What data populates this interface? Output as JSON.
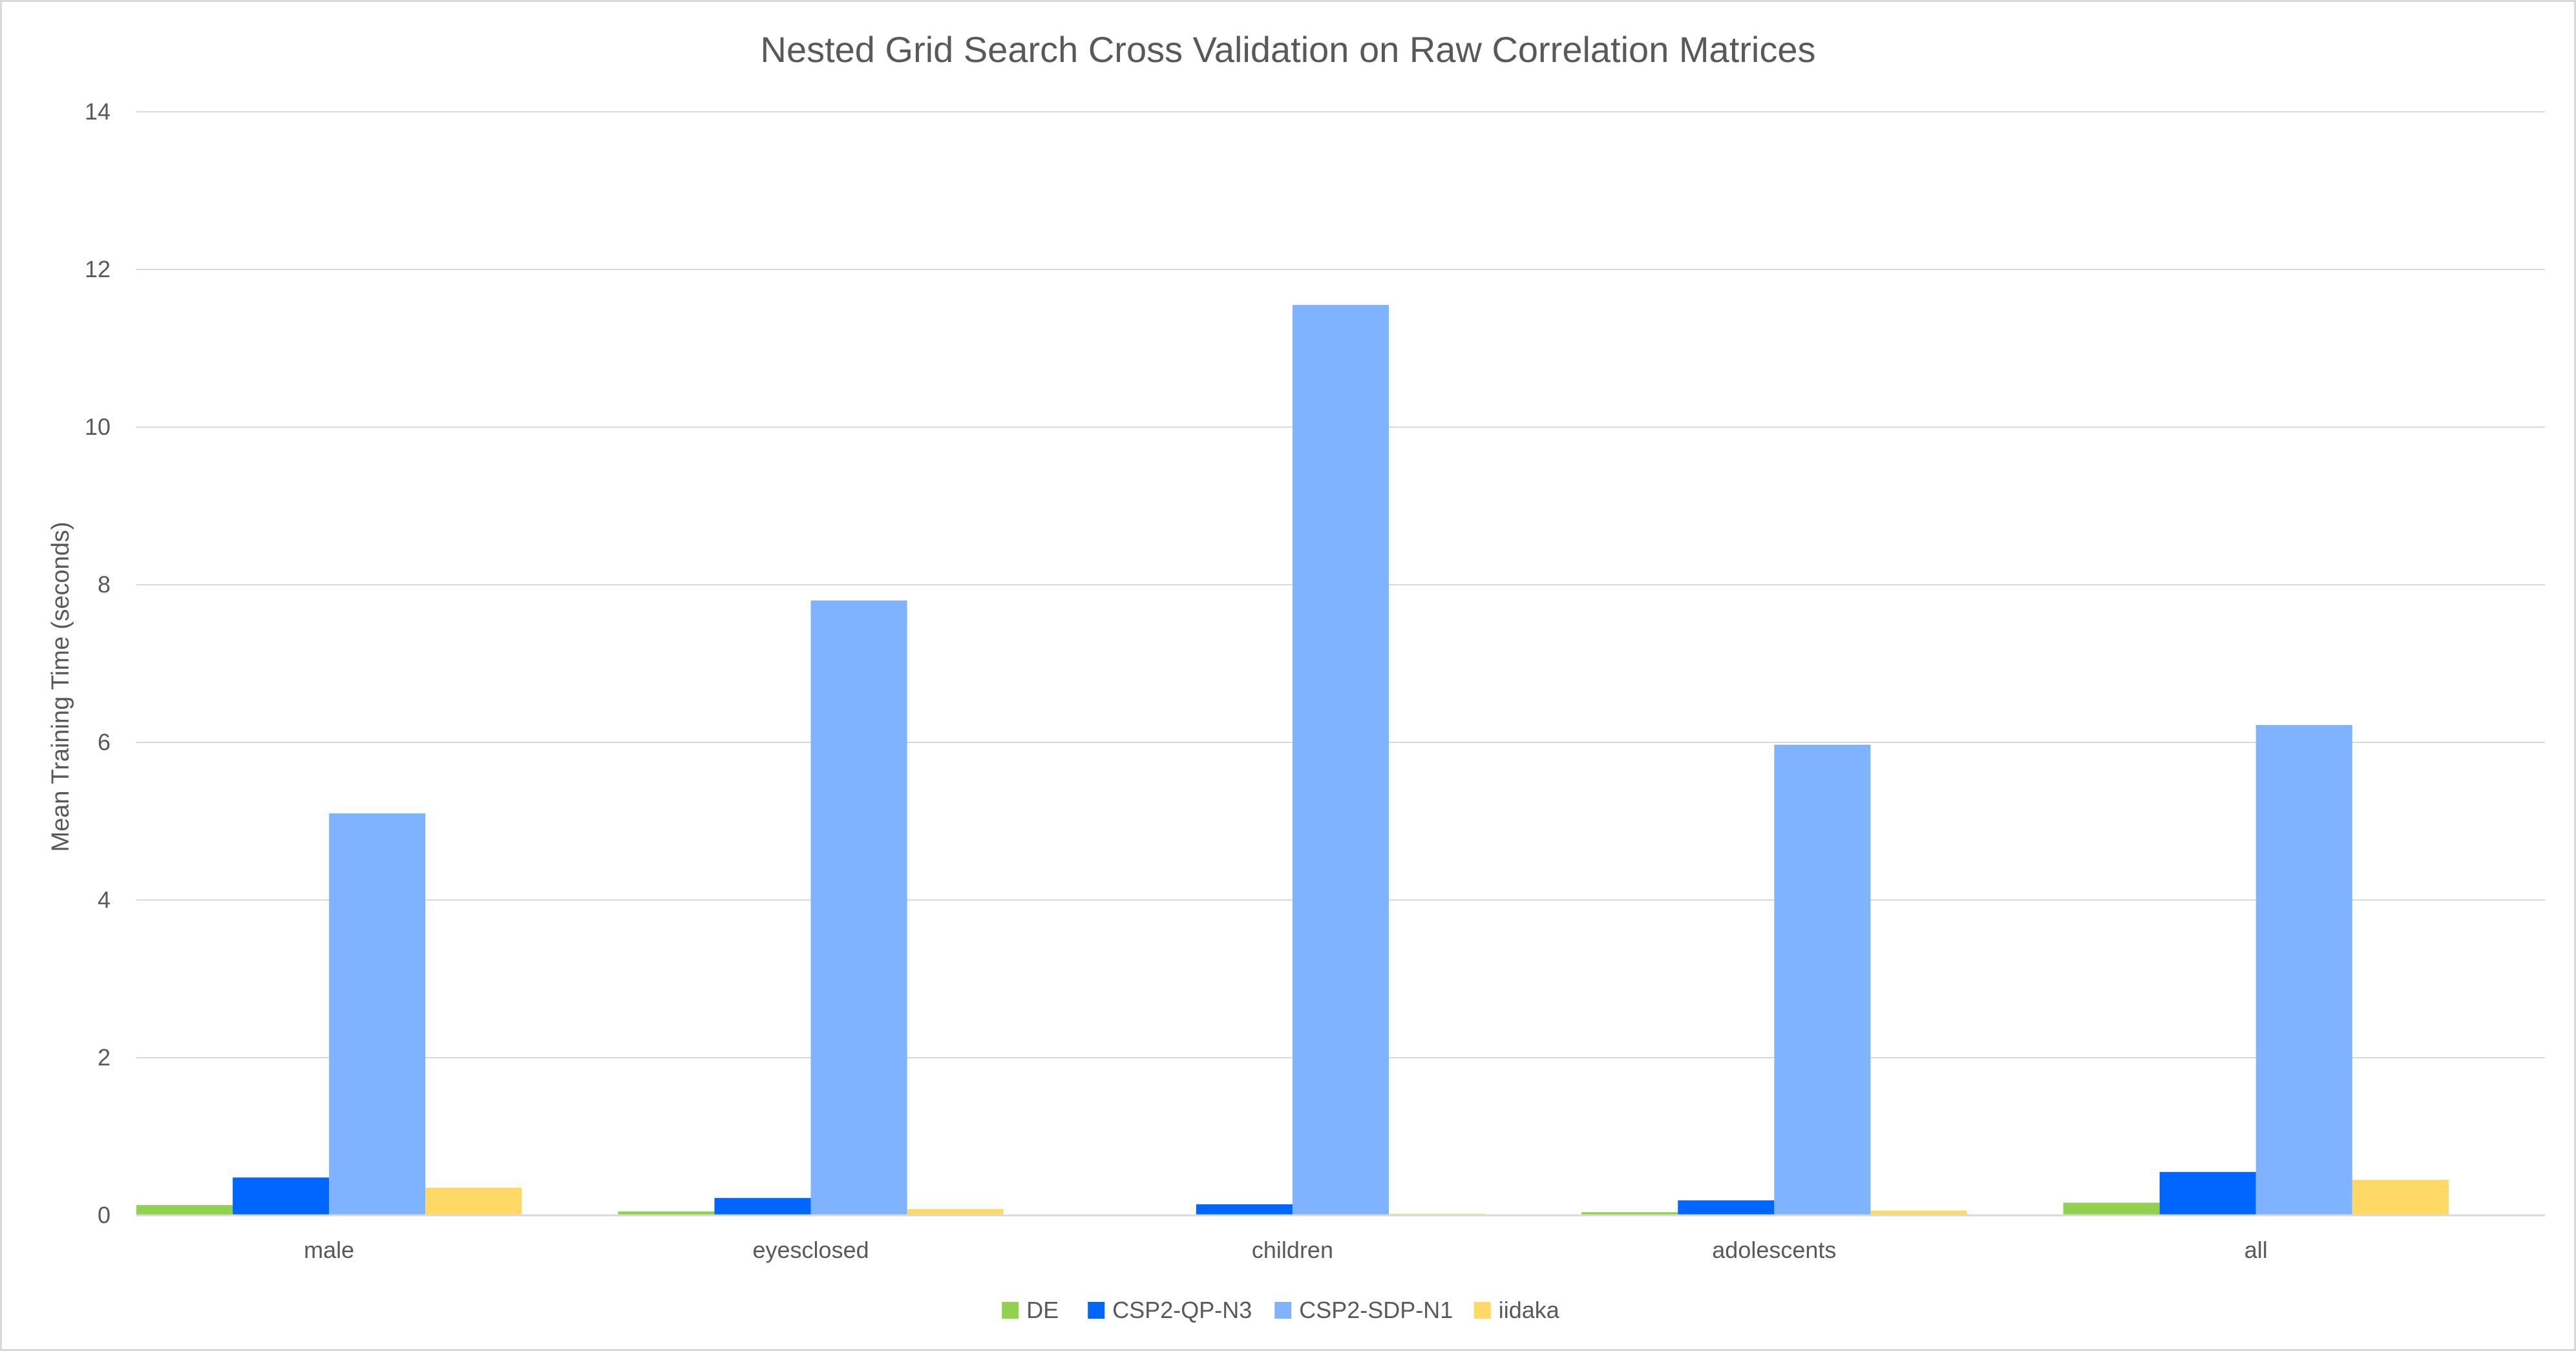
{
  "chart_data": {
    "type": "bar",
    "title": "Nested Grid Search Cross Validation on Raw Correlation Matrices",
    "xlabel": "",
    "ylabel": "Mean Training Time (seconds)",
    "ylim": [
      0,
      14
    ],
    "yticks": [
      0,
      2,
      4,
      6,
      8,
      10,
      12,
      14
    ],
    "grid": true,
    "legend_position": "bottom",
    "categories": [
      "male",
      "eyesclosed",
      "children",
      "adolescents",
      "all"
    ],
    "series": [
      {
        "name": "DE",
        "color": "#92d050",
        "values": [
          0.13,
          0.05,
          0.01,
          0.04,
          0.16
        ]
      },
      {
        "name": "CSP2-QP-N3",
        "color": "#0066ff",
        "values": [
          0.48,
          0.22,
          0.14,
          0.19,
          0.55
        ]
      },
      {
        "name": "CSP2-SDP-N1",
        "color": "#7fb2ff",
        "values": [
          5.1,
          7.8,
          11.55,
          5.97,
          6.22
        ]
      },
      {
        "name": "iidaka",
        "color": "#ffd966",
        "values": [
          0.35,
          0.08,
          0.02,
          0.06,
          0.45
        ]
      }
    ]
  }
}
